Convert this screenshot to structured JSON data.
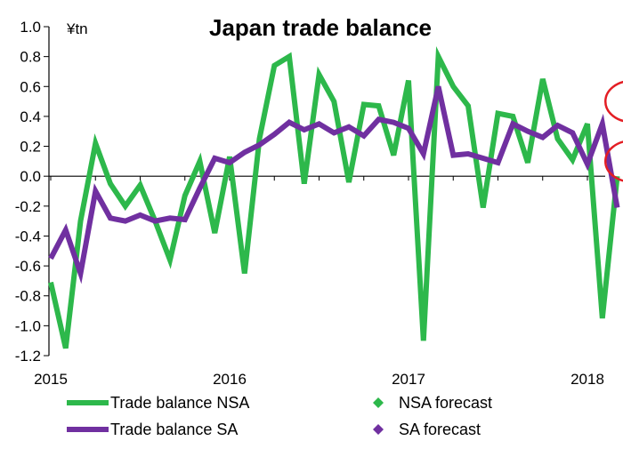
{
  "chart_data": {
    "type": "line",
    "title": "Japan trade balance",
    "unit_label": "¥tn",
    "ylim": [
      -1.2,
      1.0
    ],
    "yticks": [
      1.0,
      0.8,
      0.6,
      0.4,
      0.2,
      0.0,
      -0.2,
      -0.4,
      -0.6,
      -0.8,
      -1.0,
      -1.2
    ],
    "ytick_labels": [
      "1.0",
      "0.8",
      "0.6",
      "0.4",
      "0.2",
      "0.0",
      "-0.2",
      "-0.4",
      "-0.6",
      "-0.8",
      "-1.0",
      "-1.2"
    ],
    "xticks": [
      "2015",
      "2016",
      "2017",
      "2018"
    ],
    "x_start": "2015-01",
    "grid": false,
    "legend_position": "bottom",
    "series": [
      {
        "name": "Trade balance NSA",
        "color": "#2DB84B",
        "values": [
          -0.71,
          -1.15,
          -0.3,
          0.22,
          -0.05,
          -0.2,
          -0.06,
          -0.3,
          -0.56,
          -0.13,
          0.1,
          -0.38,
          0.13,
          -0.65,
          0.25,
          0.74,
          0.8,
          -0.05,
          0.68,
          0.5,
          -0.04,
          0.48,
          0.47,
          0.14,
          0.64,
          -1.1,
          0.8,
          0.6,
          0.47,
          -0.21,
          0.42,
          0.4,
          0.09,
          0.65,
          0.25,
          0.11,
          0.35,
          -0.95,
          0.0
        ]
      },
      {
        "name": "Trade balance SA",
        "color": "#7030A0",
        "values": [
          -0.55,
          -0.36,
          -0.65,
          -0.1,
          -0.28,
          -0.3,
          -0.26,
          -0.3,
          -0.28,
          -0.29,
          -0.08,
          0.12,
          0.09,
          0.16,
          0.21,
          0.28,
          0.36,
          0.31,
          0.35,
          0.29,
          0.33,
          0.27,
          0.38,
          0.36,
          0.32,
          0.15,
          0.6,
          0.14,
          0.15,
          0.12,
          0.09,
          0.35,
          0.3,
          0.26,
          0.34,
          0.29,
          0.08,
          0.35,
          -0.21
        ]
      }
    ],
    "forecasts": [
      {
        "name": "NSA forecast",
        "color": "#2DB84B",
        "x": "2018-04",
        "value": 0.5
      },
      {
        "name": "SA forecast",
        "color": "#7030A0",
        "x": "2018-04",
        "value": 0.1
      }
    ],
    "highlight_color": "#E31E24"
  }
}
